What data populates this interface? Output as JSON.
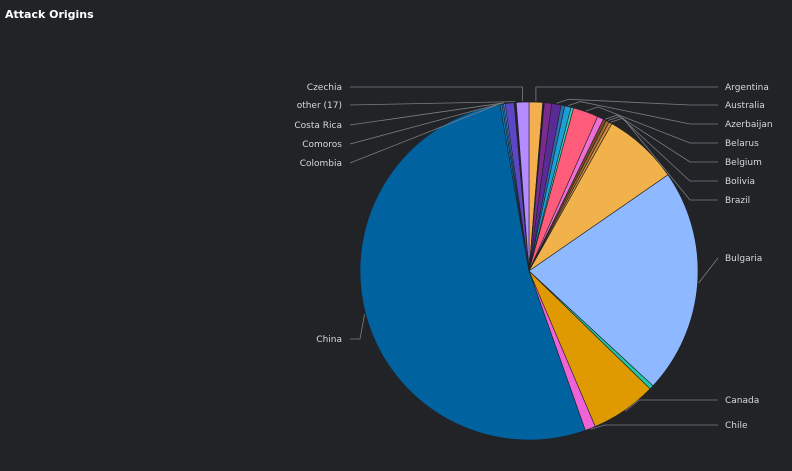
{
  "panel": {
    "title": "Attack Origins"
  },
  "chart_data": {
    "type": "pie",
    "title": "Attack Origins",
    "series": [
      {
        "slices": [
          {
            "label": "Argentina",
            "value": 1.3,
            "color": "#f4b04f"
          },
          {
            "label": "",
            "value": 0.15,
            "color": "#1f2124"
          },
          {
            "label": "",
            "value": 0.7,
            "color": "#7b2b8e"
          },
          {
            "label": "Australia",
            "value": 0.9,
            "color": "#5a2a96"
          },
          {
            "label": "",
            "value": 0.35,
            "color": "#2a6fb0"
          },
          {
            "label": "Azerbaijan",
            "value": 0.6,
            "color": "#1aa0d8"
          },
          {
            "label": "",
            "value": 0.25,
            "color": "#3ec9a7"
          },
          {
            "label": "Belarus",
            "value": 2.4,
            "color": "#ff5c7c"
          },
          {
            "label": "",
            "value": 0.6,
            "color": "#ec6ed6"
          },
          {
            "label": "Belgium",
            "value": 0.3,
            "color": "#7a4a24"
          },
          {
            "label": "Bolivia",
            "value": 0.3,
            "color": "#a86a34"
          },
          {
            "label": "Brazil",
            "value": 0.3,
            "color": "#d08a3a"
          },
          {
            "label": "",
            "value": 7.2,
            "color": "#f2b24b"
          },
          {
            "label": "Bulgaria",
            "value": 21.5,
            "color": "#8eb8ff"
          },
          {
            "label": "",
            "value": 0.4,
            "color": "#1ec8a8"
          },
          {
            "label": "Canada",
            "value": 6.3,
            "color": "#de9a00"
          },
          {
            "label": "Chile",
            "value": 1.0,
            "color": "#f062d8"
          },
          {
            "label": "China",
            "value": 52.6,
            "color": "#00629e"
          },
          {
            "label": "Colombia",
            "value": 0.2,
            "color": "#0b79c4"
          },
          {
            "label": "Comoros",
            "value": 0.15,
            "color": "#1582c9"
          },
          {
            "label": "Costa Rica",
            "value": 0.15,
            "color": "#4d8fd6"
          },
          {
            "label": "",
            "value": 0.85,
            "color": "#5c46c6"
          },
          {
            "label": "other (17)",
            "value": 0.2,
            "color": "#212327"
          },
          {
            "label": "Czechia",
            "value": 1.2,
            "color": "#b58cff"
          }
        ]
      }
    ],
    "legend": "leader-line labels",
    "labels_right": [
      "Argentina",
      "Australia",
      "Azerbaijan",
      "Belarus",
      "Belgium",
      "Bolivia",
      "Brazil",
      "Bulgaria",
      "Canada",
      "Chile"
    ],
    "labels_left": [
      "Czechia",
      "other (17)",
      "Costa Rica",
      "Comoros",
      "Colombia",
      "China"
    ]
  }
}
